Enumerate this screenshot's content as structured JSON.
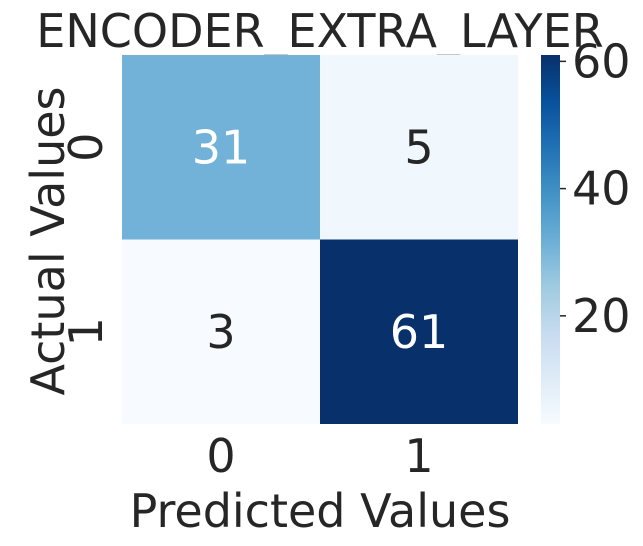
{
  "chart_data": {
    "type": "heatmap",
    "title": "ENCODER_EXTRA_LAYER",
    "xlabel": "Predicted Values",
    "ylabel": "Actual Values",
    "x_categories": [
      "0",
      "1"
    ],
    "y_categories": [
      "0",
      "1"
    ],
    "values": [
      [
        31,
        5
      ],
      [
        3,
        61
      ]
    ],
    "annotations": true,
    "colormap": "Blues",
    "vmin": 3,
    "vmax": 61,
    "colorbar": {
      "ticks": [
        20,
        40,
        60
      ],
      "tick_labels": [
        "20",
        "40",
        "60"
      ]
    },
    "colors": {
      "annotation_on_dark": "#ffffff",
      "annotation_on_light": "#262626",
      "text": "#262626"
    }
  }
}
